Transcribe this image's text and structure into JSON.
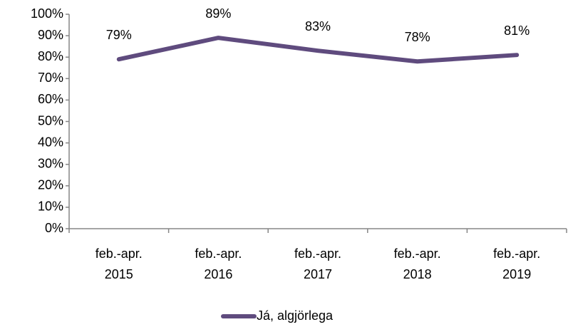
{
  "chart_data": {
    "type": "line",
    "categories": [
      [
        "feb.-apr.",
        "2015"
      ],
      [
        "feb.-apr.",
        "2016"
      ],
      [
        "feb.-apr.",
        "2017"
      ],
      [
        "feb.-apr.",
        "2018"
      ],
      [
        "feb.-apr.",
        "2019"
      ]
    ],
    "series": [
      {
        "name": "Já, algjörlega",
        "color": "#5f4b7e",
        "values": [
          79,
          89,
          83,
          78,
          81
        ],
        "value_labels": [
          "79%",
          "89%",
          "83%",
          "78%",
          "81%"
        ]
      }
    ],
    "ylim": [
      0,
      100
    ],
    "yticks": [
      {
        "value": 0,
        "label": "0%"
      },
      {
        "value": 10,
        "label": "10%"
      },
      {
        "value": 20,
        "label": "20%"
      },
      {
        "value": 30,
        "label": "30%"
      },
      {
        "value": 40,
        "label": "40%"
      },
      {
        "value": 50,
        "label": "50%"
      },
      {
        "value": 60,
        "label": "60%"
      },
      {
        "value": 70,
        "label": "70%"
      },
      {
        "value": 80,
        "label": "80%"
      },
      {
        "value": 90,
        "label": "90%"
      },
      {
        "value": 100,
        "label": "100%"
      }
    ],
    "grid": false,
    "legend": "bottom"
  }
}
